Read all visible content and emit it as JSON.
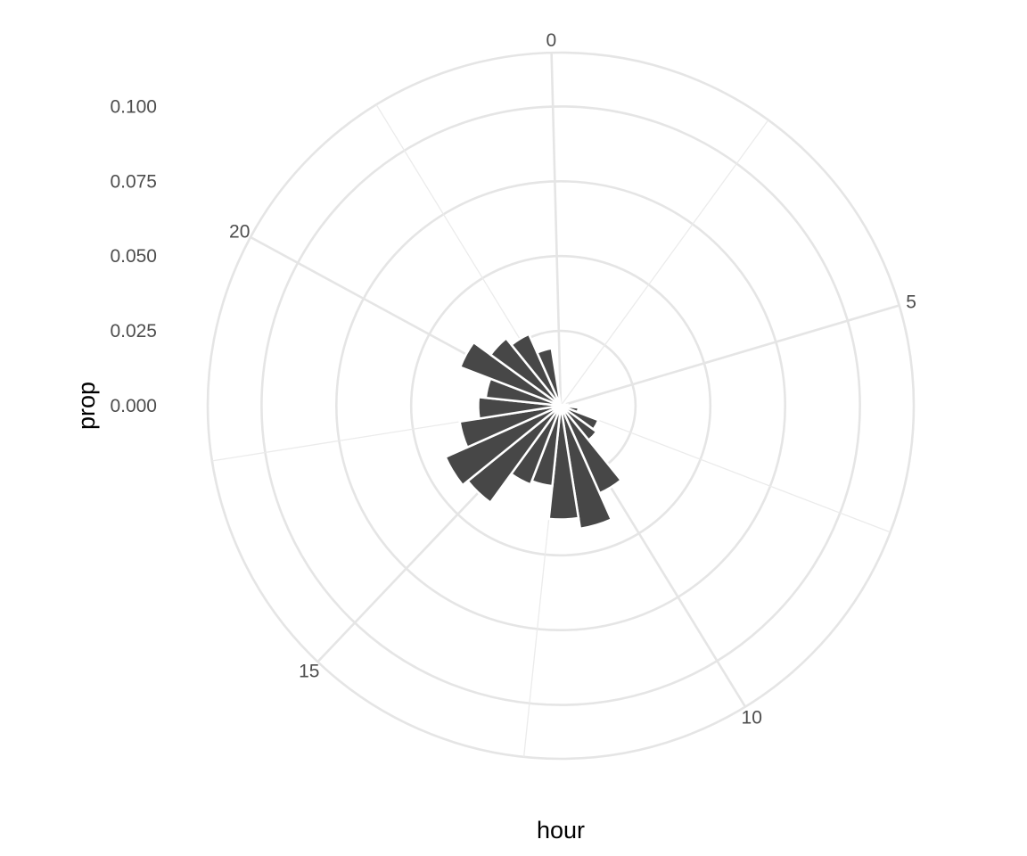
{
  "chart_data": {
    "type": "bar",
    "coordinates": "polar",
    "xlabel": "hour",
    "ylabel": "prop",
    "x": [
      0,
      1,
      2,
      3,
      4,
      5,
      6,
      7,
      8,
      9,
      10,
      11,
      12,
      13,
      14,
      15,
      16,
      17,
      18,
      19,
      20,
      21,
      22,
      23
    ],
    "values": [
      0.0003,
      0.0001,
      0.0,
      0.0001,
      0.0001,
      0.0015,
      0.0023,
      0.006,
      0.0135,
      0.0148,
      0.032,
      0.0416,
      0.038,
      0.027,
      0.0282,
      0.04,
      0.0422,
      0.0342,
      0.0276,
      0.0252,
      0.036,
      0.029,
      0.0262,
      0.0194
    ],
    "x_breaks": [
      "0",
      "5",
      "10",
      "15",
      "20"
    ],
    "y_breaks": [
      "0.000",
      "0.025",
      "0.050",
      "0.075",
      "0.100"
    ],
    "ylim": [
      0,
      0.118
    ],
    "bar_color": "#474747",
    "grid": true,
    "legend": "none"
  }
}
